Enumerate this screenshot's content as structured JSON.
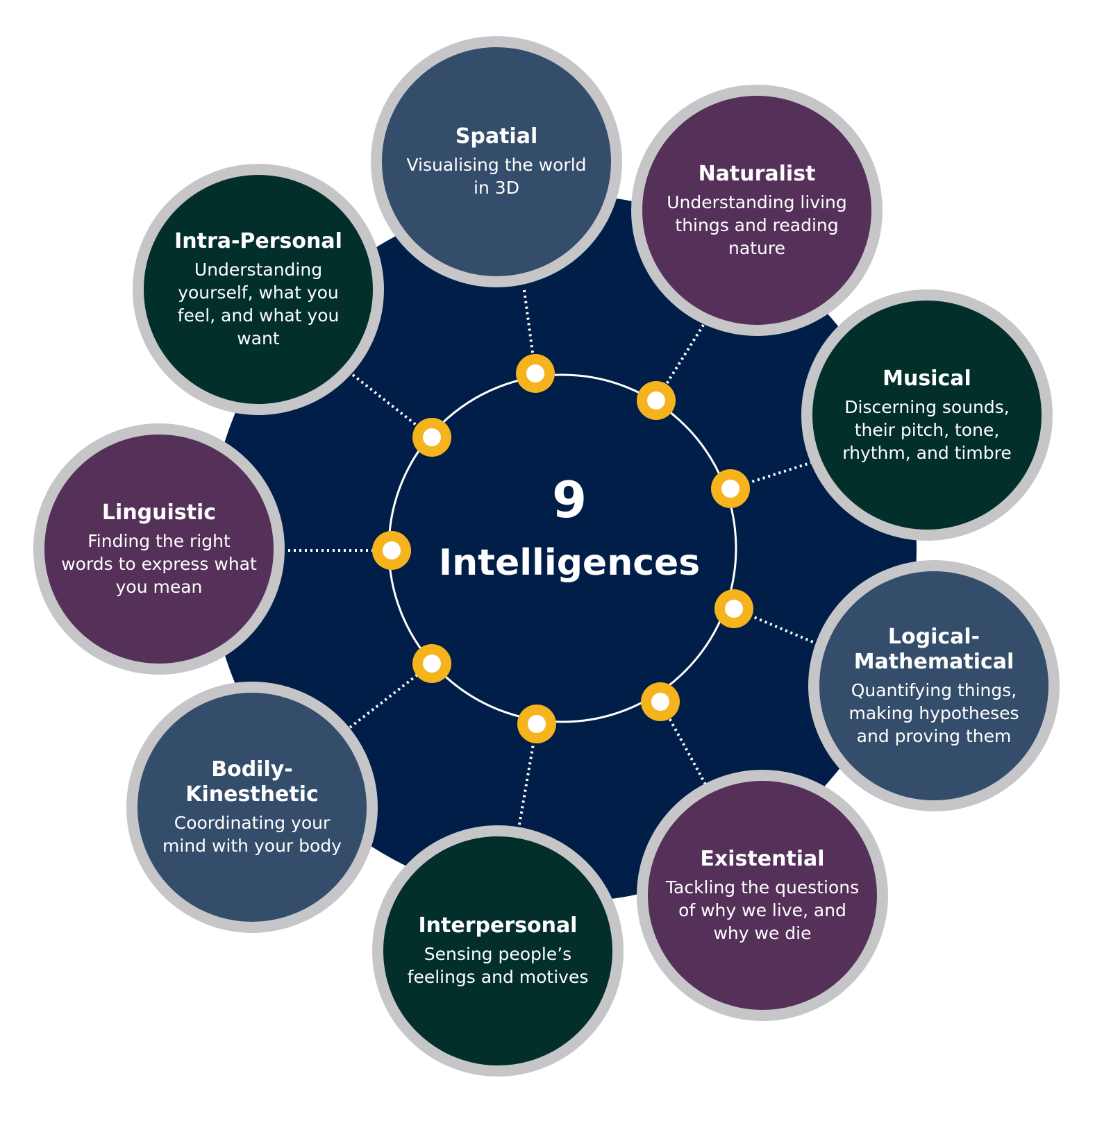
{
  "center": {
    "number": "9",
    "title": "Intelligences"
  },
  "colors": {
    "hub": "#001e47",
    "ring_line": "#ffffff",
    "node_border": "#c6c6c8",
    "marker": "#f5b41d",
    "slate": "#344d6b",
    "plum": "#55315a",
    "forest": "#032f2b"
  },
  "intelligences": [
    {
      "id": "spatial",
      "name": "Spatial",
      "description": "Visualising the world in 3D",
      "color": "slate"
    },
    {
      "id": "naturalist",
      "name": "Naturalist",
      "description": "Understanding living things and reading nature",
      "color": "plum"
    },
    {
      "id": "musical",
      "name": "Musical",
      "description": "Discerning sounds, their pitch, tone, rhythm, and timbre",
      "color": "forest"
    },
    {
      "id": "logical-mathematical",
      "name": "Logical-Mathematical",
      "description": "Quantifying things, making hypotheses and proving them",
      "color": "slate"
    },
    {
      "id": "existential",
      "name": "Existential",
      "description": "Tackling the questions of why we live, and why we die",
      "color": "plum"
    },
    {
      "id": "interpersonal",
      "name": "Interpersonal",
      "description": "Sensing people’s feelings and motives",
      "color": "forest"
    },
    {
      "id": "bodily-kinesthetic",
      "name": "Bodily-Kinesthetic",
      "description": "Coordinating your mind with your body",
      "color": "slate"
    },
    {
      "id": "linguistic",
      "name": "Linguistic",
      "description": "Finding the right words to express what you mean",
      "color": "plum"
    },
    {
      "id": "intra-personal",
      "name": "Intra-Personal",
      "description": "Understanding yourself, what you feel, and what you want",
      "color": "forest"
    }
  ]
}
